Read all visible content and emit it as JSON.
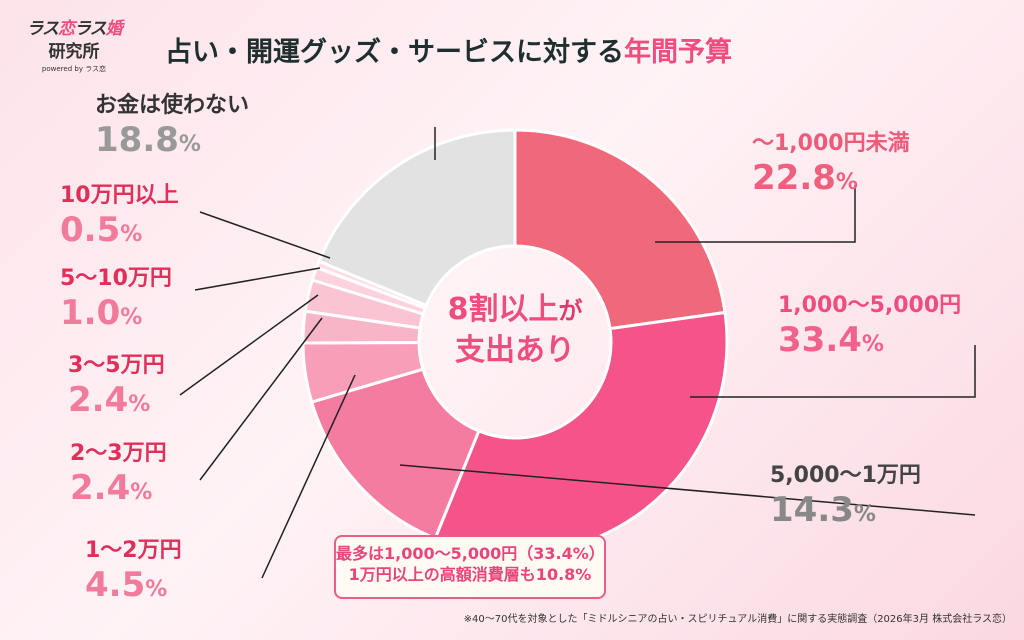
{
  "logo": {
    "line1a": "ラス",
    "line1b": "恋",
    "line1c": "ラス",
    "line1d": "婚",
    "line2": "研究所",
    "line3": "powered by ラス恋"
  },
  "title": {
    "main": "占い・開運グッズ・サービスに対する",
    "highlight": "年間予算"
  },
  "center": {
    "line1a": "8割以上",
    "line1b": "が",
    "line2": "支出あり"
  },
  "callout": {
    "line1": "最多は1,000〜5,000円（33.4%）",
    "line2": "1万円以上の高額消費層も10.8%"
  },
  "footnote": "※40〜70代を対象とした「ミドルシニアの占い・スピリチュアル消費」に関する実態調査（2026年3月 株式会社ラス恋）",
  "chart_data": {
    "type": "pie",
    "donut": true,
    "start": "12 o'clock, clockwise",
    "unit": "%",
    "slices": [
      {
        "label": "〜1,000円未満",
        "value": 22.8,
        "display": "22.8",
        "color": "#f0697a"
      },
      {
        "label": "1,000〜5,000円",
        "value": 33.4,
        "display": "33.4",
        "color": "#f5548a"
      },
      {
        "label": "5,000〜1万円",
        "value": 14.3,
        "display": "14.3",
        "color": "#f47ca0"
      },
      {
        "label": "1〜2万円",
        "value": 4.5,
        "display": "4.5",
        "color": "#f89eb8"
      },
      {
        "label": "2〜3万円",
        "value": 2.4,
        "display": "2.4",
        "color": "#f9b5c8"
      },
      {
        "label": "3〜5万円",
        "value": 2.4,
        "display": "2.4",
        "color": "#fac4d3"
      },
      {
        "label": "5〜10万円",
        "value": 1.0,
        "display": "1.0",
        "color": "#fbd2dd"
      },
      {
        "label": "10万円以上",
        "value": 0.5,
        "display": "0.5",
        "color": "#fcdce5"
      },
      {
        "label": "お金は使わない",
        "value": 18.8,
        "display": "18.8",
        "color": "#e2e2e2"
      }
    ]
  }
}
